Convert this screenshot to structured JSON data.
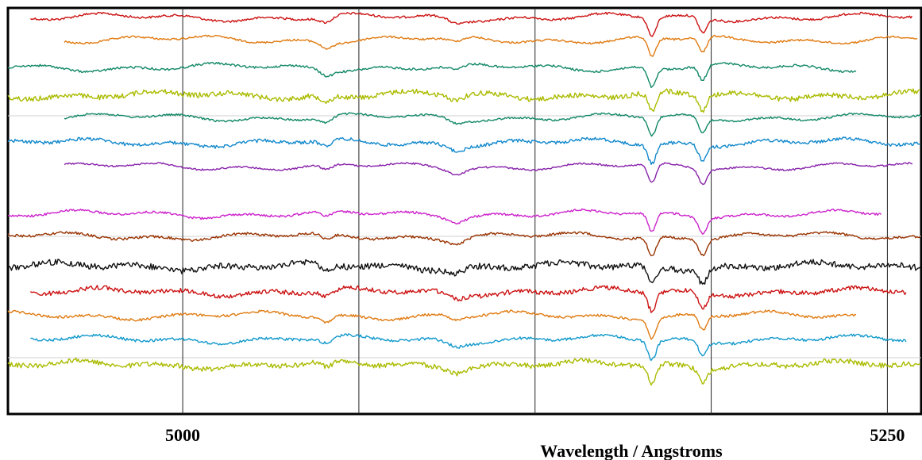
{
  "chart_data": {
    "type": "line",
    "title": "",
    "xlabel": "Wavelength / Angstroms",
    "ylabel": "",
    "x_tick_labels": [
      "5000",
      "5250"
    ],
    "xlim": [
      4938,
      5262
    ],
    "x_gridlines": [
      5000,
      5062.5,
      5125,
      5187.5,
      5250
    ],
    "grid": true,
    "legend": "none",
    "features": [
      {
        "center": 5166.5,
        "depth": 1.0,
        "width": 2.0
      },
      {
        "center": 5184.5,
        "depth": 0.8,
        "width": 2.0
      },
      {
        "center": 5051,
        "depth": 0.3,
        "width": 3.0
      },
      {
        "center": 5097,
        "depth": 0.25,
        "width": 4.0
      }
    ],
    "series": [
      {
        "color": "#cc1111",
        "x_start": 4946,
        "x_end": 5259,
        "noise": 0.4
      },
      {
        "color": "#e07a10",
        "x_start": 4958,
        "x_end": 5261,
        "noise": 0.35
      },
      {
        "color": "#118866",
        "x_start": 4938,
        "x_end": 5239,
        "noise": 0.4
      },
      {
        "color": "#aabb00",
        "x_start": 4938,
        "x_end": 5262,
        "noise": 0.9
      },
      {
        "color": "#118866",
        "x_start": 4958,
        "x_end": 5262,
        "noise": 0.35
      },
      {
        "color": "#1188cc",
        "x_start": 4938,
        "x_end": 5262,
        "noise": 0.6
      },
      {
        "color": "#8822aa",
        "x_start": 4958,
        "x_end": 5259,
        "noise": 0.3
      },
      {
        "color": "#cc22cc",
        "x_start": 4938,
        "x_end": 5248,
        "noise": 0.4
      },
      {
        "color": "#993300",
        "x_start": 4938,
        "x_end": 5262,
        "noise": 0.45
      },
      {
        "color": "#111111",
        "x_start": 4938,
        "x_end": 5262,
        "noise": 1.1
      },
      {
        "color": "#cc1111",
        "x_start": 4946,
        "x_end": 5257,
        "noise": 0.8
      },
      {
        "color": "#e07a10",
        "x_start": 4938,
        "x_end": 5239,
        "noise": 0.45
      },
      {
        "color": "#1199cc",
        "x_start": 4946,
        "x_end": 5257,
        "noise": 0.5
      },
      {
        "color": "#aabb00",
        "x_start": 4938,
        "x_end": 5262,
        "noise": 0.9
      }
    ]
  }
}
